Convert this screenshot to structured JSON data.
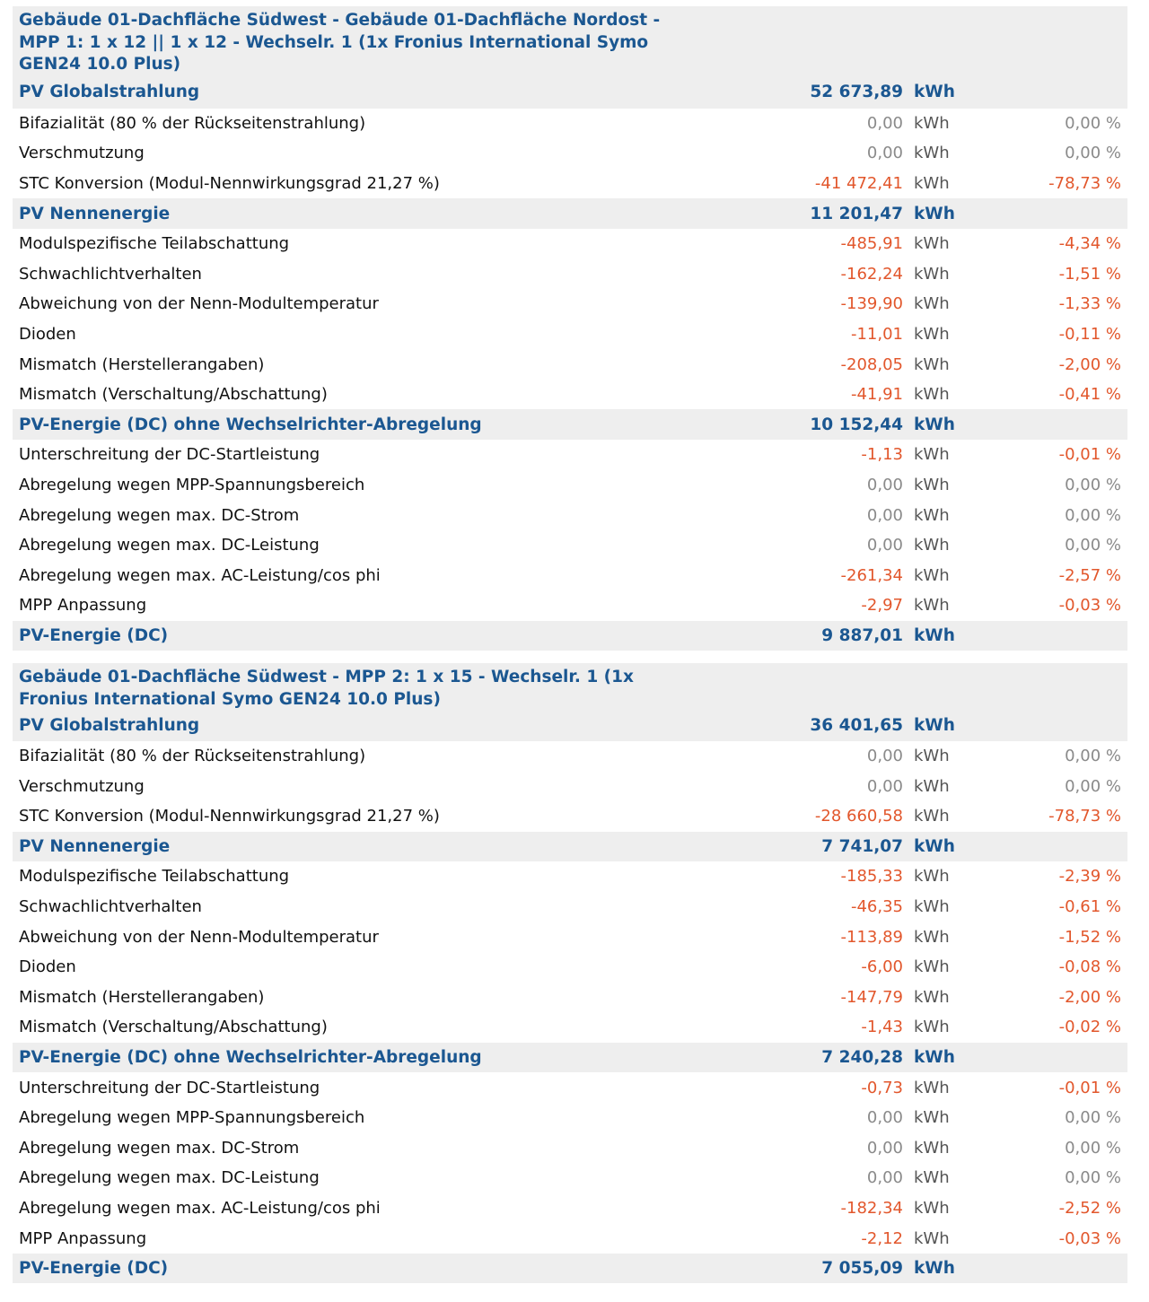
{
  "colors": {
    "heading": "#1b5791",
    "negative": "#e2572c",
    "zero": "#8a8a8a",
    "band": "#eeeeee"
  },
  "unit_kwh": "kWh",
  "sections": [
    {
      "title": "Gebäude 01-Dachfläche Südwest - Gebäude 01-Dachfläche Nordost - MPP 1: 1 x 12 || 1 x 12 - Wechselr. 1 (1x Fronius International Symo GEN24 10.0 Plus)",
      "rows": [
        {
          "label": "PV Globalstrahlung",
          "value": "52 673,89",
          "unit": "kWh",
          "pct": "",
          "type": "head"
        },
        {
          "label": "Bifazialität (80 % der Rückseitenstrahlung)",
          "value": "0,00",
          "unit": "kWh",
          "pct": "0,00 %",
          "type": "zero"
        },
        {
          "label": "Verschmutzung",
          "value": "0,00",
          "unit": "kWh",
          "pct": "0,00 %",
          "type": "zero"
        },
        {
          "label": "STC Konversion (Modul-Nennwirkungsgrad 21,27 %)",
          "value": "-41 472,41",
          "unit": "kWh",
          "pct": "-78,73 %",
          "type": "neg"
        },
        {
          "label": "PV Nennenergie",
          "value": "11 201,47",
          "unit": "kWh",
          "pct": "",
          "type": "head"
        },
        {
          "label": "Modulspezifische Teilabschattung",
          "value": "-485,91",
          "unit": "kWh",
          "pct": "-4,34 %",
          "type": "neg"
        },
        {
          "label": "Schwachlichtverhalten",
          "value": "-162,24",
          "unit": "kWh",
          "pct": "-1,51 %",
          "type": "neg"
        },
        {
          "label": "Abweichung von der Nenn-Modultemperatur",
          "value": "-139,90",
          "unit": "kWh",
          "pct": "-1,33 %",
          "type": "neg"
        },
        {
          "label": "Dioden",
          "value": "-11,01",
          "unit": "kWh",
          "pct": "-0,11 %",
          "type": "neg"
        },
        {
          "label": "Mismatch (Herstellerangaben)",
          "value": "-208,05",
          "unit": "kWh",
          "pct": "-2,00 %",
          "type": "neg"
        },
        {
          "label": "Mismatch (Verschaltung/Abschattung)",
          "value": "-41,91",
          "unit": "kWh",
          "pct": "-0,41 %",
          "type": "neg"
        },
        {
          "label": "PV-Energie (DC) ohne Wechselrichter-Abregelung",
          "value": "10 152,44",
          "unit": "kWh",
          "pct": "",
          "type": "head"
        },
        {
          "label": "Unterschreitung der DC-Startleistung",
          "value": "-1,13",
          "unit": "kWh",
          "pct": "-0,01 %",
          "type": "neg"
        },
        {
          "label": "Abregelung wegen MPP-Spannungsbereich",
          "value": "0,00",
          "unit": "kWh",
          "pct": "0,00 %",
          "type": "zero"
        },
        {
          "label": "Abregelung wegen max. DC-Strom",
          "value": "0,00",
          "unit": "kWh",
          "pct": "0,00 %",
          "type": "zero"
        },
        {
          "label": "Abregelung wegen max. DC-Leistung",
          "value": "0,00",
          "unit": "kWh",
          "pct": "0,00 %",
          "type": "zero"
        },
        {
          "label": "Abregelung wegen max. AC-Leistung/cos phi",
          "value": "-261,34",
          "unit": "kWh",
          "pct": "-2,57 %",
          "type": "neg"
        },
        {
          "label": "MPP Anpassung",
          "value": "-2,97",
          "unit": "kWh",
          "pct": "-0,03 %",
          "type": "neg"
        },
        {
          "label": "PV-Energie (DC)",
          "value": "9 887,01",
          "unit": "kWh",
          "pct": "",
          "type": "head"
        }
      ]
    },
    {
      "title": "Gebäude 01-Dachfläche Südwest - MPP 2: 1 x 15 - Wechselr. 1 (1x Fronius International Symo GEN24 10.0 Plus)",
      "rows": [
        {
          "label": "PV Globalstrahlung",
          "value": "36 401,65",
          "unit": "kWh",
          "pct": "",
          "type": "head"
        },
        {
          "label": "Bifazialität (80 % der Rückseitenstrahlung)",
          "value": "0,00",
          "unit": "kWh",
          "pct": "0,00 %",
          "type": "zero"
        },
        {
          "label": "Verschmutzung",
          "value": "0,00",
          "unit": "kWh",
          "pct": "0,00 %",
          "type": "zero"
        },
        {
          "label": "STC Konversion (Modul-Nennwirkungsgrad 21,27 %)",
          "value": "-28 660,58",
          "unit": "kWh",
          "pct": "-78,73 %",
          "type": "neg"
        },
        {
          "label": "PV Nennenergie",
          "value": "7 741,07",
          "unit": "kWh",
          "pct": "",
          "type": "head"
        },
        {
          "label": "Modulspezifische Teilabschattung",
          "value": "-185,33",
          "unit": "kWh",
          "pct": "-2,39 %",
          "type": "neg"
        },
        {
          "label": "Schwachlichtverhalten",
          "value": "-46,35",
          "unit": "kWh",
          "pct": "-0,61 %",
          "type": "neg"
        },
        {
          "label": "Abweichung von der Nenn-Modultemperatur",
          "value": "-113,89",
          "unit": "kWh",
          "pct": "-1,52 %",
          "type": "neg"
        },
        {
          "label": "Dioden",
          "value": "-6,00",
          "unit": "kWh",
          "pct": "-0,08 %",
          "type": "neg"
        },
        {
          "label": "Mismatch (Herstellerangaben)",
          "value": "-147,79",
          "unit": "kWh",
          "pct": "-2,00 %",
          "type": "neg"
        },
        {
          "label": "Mismatch (Verschaltung/Abschattung)",
          "value": "-1,43",
          "unit": "kWh",
          "pct": "-0,02 %",
          "type": "neg"
        },
        {
          "label": "PV-Energie (DC) ohne Wechselrichter-Abregelung",
          "value": "7 240,28",
          "unit": "kWh",
          "pct": "",
          "type": "head"
        },
        {
          "label": "Unterschreitung der DC-Startleistung",
          "value": "-0,73",
          "unit": "kWh",
          "pct": "-0,01 %",
          "type": "neg"
        },
        {
          "label": "Abregelung wegen MPP-Spannungsbereich",
          "value": "0,00",
          "unit": "kWh",
          "pct": "0,00 %",
          "type": "zero"
        },
        {
          "label": "Abregelung wegen max. DC-Strom",
          "value": "0,00",
          "unit": "kWh",
          "pct": "0,00 %",
          "type": "zero"
        },
        {
          "label": "Abregelung wegen max. DC-Leistung",
          "value": "0,00",
          "unit": "kWh",
          "pct": "0,00 %",
          "type": "zero"
        },
        {
          "label": "Abregelung wegen max. AC-Leistung/cos phi",
          "value": "-182,34",
          "unit": "kWh",
          "pct": "-2,52 %",
          "type": "neg"
        },
        {
          "label": "MPP Anpassung",
          "value": "-2,12",
          "unit": "kWh",
          "pct": "-0,03 %",
          "type": "neg"
        },
        {
          "label": "PV-Energie (DC)",
          "value": "7 055,09",
          "unit": "kWh",
          "pct": "",
          "type": "head"
        }
      ]
    }
  ]
}
